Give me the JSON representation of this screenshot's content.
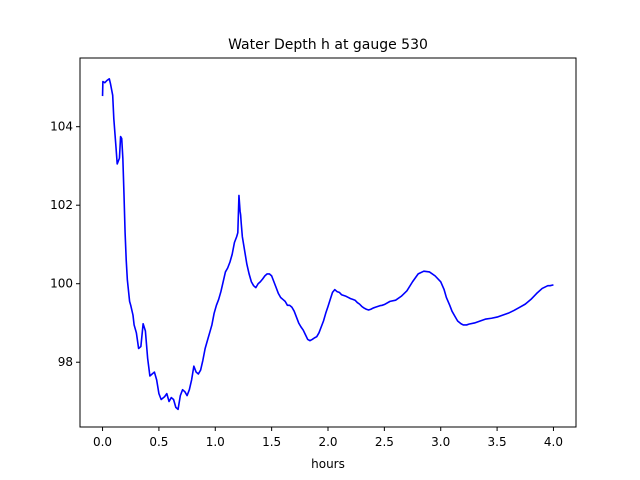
{
  "chart_data": {
    "type": "line",
    "title": "Water Depth h at gauge 530",
    "xlabel": "hours",
    "ylabel": "",
    "xlim": [
      -0.2,
      4.2
    ],
    "ylim": [
      96.35,
      105.75
    ],
    "xticks": [
      0.0,
      0.5,
      1.0,
      1.5,
      2.0,
      2.5,
      3.0,
      3.5,
      4.0
    ],
    "xtick_labels": [
      "0.0",
      "0.5",
      "1.0",
      "1.5",
      "2.0",
      "2.5",
      "3.0",
      "3.5",
      "4.0"
    ],
    "yticks": [
      98,
      100,
      102,
      104
    ],
    "ytick_labels": [
      "98",
      "100",
      "102",
      "104"
    ],
    "grid": false,
    "line_color": "#0000ff",
    "series": [
      {
        "x": [
          0.0,
          0.003,
          0.02,
          0.04,
          0.06,
          0.07,
          0.09,
          0.1,
          0.12,
          0.13,
          0.15,
          0.16,
          0.17,
          0.18,
          0.19,
          0.2,
          0.21,
          0.22,
          0.24,
          0.25,
          0.27,
          0.28,
          0.3,
          0.32,
          0.34,
          0.36,
          0.38,
          0.4,
          0.42,
          0.44,
          0.46,
          0.48,
          0.5,
          0.52,
          0.55,
          0.57,
          0.59,
          0.61,
          0.63,
          0.65,
          0.67,
          0.69,
          0.71,
          0.73,
          0.75,
          0.77,
          0.79,
          0.81,
          0.83,
          0.85,
          0.87,
          0.89,
          0.91,
          0.93,
          0.95,
          0.97,
          0.99,
          1.01,
          1.03,
          1.05,
          1.07,
          1.09,
          1.11,
          1.13,
          1.15,
          1.17,
          1.19,
          1.2,
          1.21,
          1.22,
          1.225,
          1.23,
          1.24,
          1.26,
          1.28,
          1.3,
          1.32,
          1.34,
          1.36,
          1.38,
          1.4,
          1.42,
          1.44,
          1.46,
          1.48,
          1.5,
          1.52,
          1.54,
          1.56,
          1.58,
          1.6,
          1.62,
          1.64,
          1.66,
          1.68,
          1.7,
          1.72,
          1.74,
          1.76,
          1.78,
          1.8,
          1.82,
          1.84,
          1.86,
          1.88,
          1.9,
          1.92,
          1.94,
          1.96,
          1.98,
          2.0,
          2.02,
          2.04,
          2.06,
          2.08,
          2.1,
          2.12,
          2.14,
          2.16,
          2.18,
          2.2,
          2.22,
          2.24,
          2.26,
          2.28,
          2.3,
          2.32,
          2.34,
          2.36,
          2.38,
          2.4,
          2.42,
          2.44,
          2.46,
          2.48,
          2.5,
          2.55,
          2.6,
          2.65,
          2.7,
          2.75,
          2.8,
          2.85,
          2.9,
          2.95,
          3.0,
          3.03,
          3.05,
          3.08,
          3.1,
          3.13,
          3.15,
          3.18,
          3.2,
          3.23,
          3.25,
          3.3,
          3.35,
          3.4,
          3.45,
          3.5,
          3.55,
          3.6,
          3.65,
          3.7,
          3.75,
          3.8,
          3.85,
          3.9,
          3.95,
          3.97,
          4.0
        ],
        "y": [
          104.78,
          105.15,
          105.12,
          105.18,
          105.22,
          105.1,
          104.8,
          104.2,
          103.45,
          103.05,
          103.2,
          103.75,
          103.7,
          103.2,
          102.3,
          101.3,
          100.6,
          100.1,
          99.55,
          99.45,
          99.2,
          98.95,
          98.75,
          98.35,
          98.4,
          98.98,
          98.8,
          98.1,
          97.65,
          97.7,
          97.75,
          97.55,
          97.2,
          97.05,
          97.12,
          97.2,
          97.0,
          97.1,
          97.05,
          96.85,
          96.8,
          97.15,
          97.3,
          97.25,
          97.15,
          97.3,
          97.55,
          97.9,
          97.75,
          97.7,
          97.8,
          98.05,
          98.35,
          98.55,
          98.75,
          98.95,
          99.25,
          99.45,
          99.6,
          99.8,
          100.05,
          100.3,
          100.4,
          100.55,
          100.75,
          101.05,
          101.2,
          101.3,
          102.25,
          101.85,
          101.75,
          101.55,
          101.2,
          100.85,
          100.5,
          100.25,
          100.05,
          99.95,
          99.9,
          100.0,
          100.05,
          100.12,
          100.2,
          100.25,
          100.25,
          100.2,
          100.05,
          99.9,
          99.75,
          99.65,
          99.6,
          99.55,
          99.45,
          99.45,
          99.4,
          99.3,
          99.15,
          99.0,
          98.9,
          98.82,
          98.7,
          98.58,
          98.55,
          98.58,
          98.62,
          98.65,
          98.75,
          98.9,
          99.05,
          99.25,
          99.42,
          99.6,
          99.78,
          99.85,
          99.8,
          99.78,
          99.72,
          99.7,
          99.68,
          99.65,
          99.62,
          99.6,
          99.58,
          99.52,
          99.48,
          99.42,
          99.38,
          99.35,
          99.33,
          99.35,
          99.38,
          99.4,
          99.42,
          99.44,
          99.45,
          99.47,
          99.55,
          99.58,
          99.68,
          99.82,
          100.05,
          100.25,
          100.32,
          100.3,
          100.2,
          100.05,
          99.85,
          99.65,
          99.45,
          99.3,
          99.15,
          99.05,
          98.98,
          98.95,
          98.95,
          98.97,
          99.0,
          99.05,
          99.1,
          99.12,
          99.15,
          99.2,
          99.25,
          99.32,
          99.4,
          99.48,
          99.6,
          99.75,
          99.88,
          99.95,
          99.95,
          99.97
        ]
      }
    ]
  }
}
